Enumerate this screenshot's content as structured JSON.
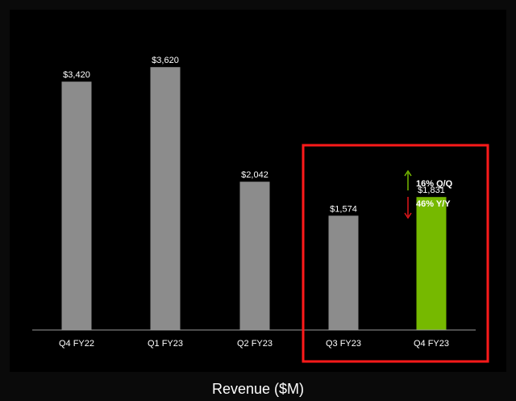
{
  "chart_data": {
    "type": "bar",
    "title": "",
    "xlabel": "Revenue ($M)",
    "ylabel": "",
    "categories": [
      "Q4 FY22",
      "Q1 FY23",
      "Q2 FY23",
      "Q3 FY23",
      "Q4 FY23"
    ],
    "values": [
      3420,
      3620,
      2042,
      1574,
      1831
    ],
    "value_labels": [
      "$3,420",
      "$3,620",
      "$2,042",
      "$1,574",
      "$1,831"
    ],
    "ylim": [
      0,
      4000
    ],
    "grid": false,
    "legend": "none",
    "highlight": {
      "categories": [
        "Q3 FY23",
        "Q4 FY23"
      ],
      "box_color": "#ff1a1a"
    },
    "annotations": [
      {
        "text": "16% Q/Q",
        "direction": "up",
        "color": "#76b900"
      },
      {
        "text": "46% Y/Y",
        "direction": "down",
        "color": "#e0161b"
      }
    ],
    "colors": {
      "bar_default": "#8c8c8c",
      "bar_highlight": "#76b900",
      "axis": "#9a9a9a",
      "background": "#000000"
    }
  }
}
